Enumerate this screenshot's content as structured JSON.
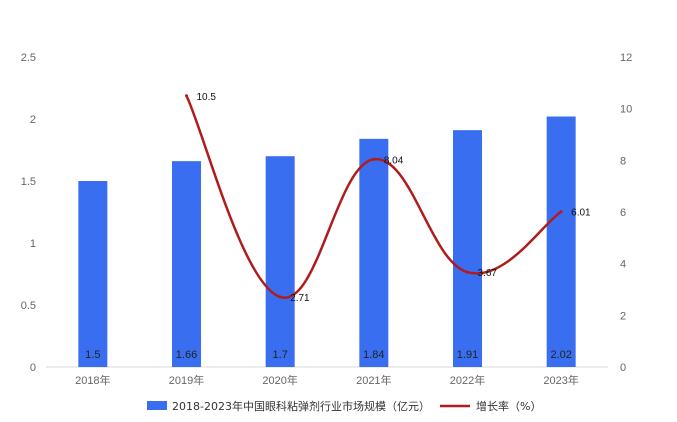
{
  "chart_data": {
    "type": "bar",
    "categories": [
      "2018年",
      "2019年",
      "2020年",
      "2021年",
      "2022年",
      "2023年"
    ],
    "series": [
      {
        "name": "2018-2023年中国眼科粘弹剂行业市场规模（亿元）",
        "type": "bar",
        "axis": "left",
        "color": "#3a6ef0",
        "values": [
          1.5,
          1.66,
          1.7,
          1.84,
          1.91,
          2.02
        ],
        "labels": [
          "1.5",
          "1.66",
          "1.7",
          "1.84",
          "1.91",
          "2.02"
        ]
      },
      {
        "name": "增长率（%）",
        "type": "line",
        "axis": "right",
        "color": "#b01c1c",
        "values": [
          null,
          10.5,
          2.71,
          8.04,
          3.67,
          6.01
        ],
        "labels": [
          "",
          "10.5",
          "2.71",
          "8.04",
          "3.67",
          "6.01"
        ]
      }
    ],
    "y_left": {
      "range": [
        0,
        2.5
      ],
      "ticks": [
        "0",
        "0.5",
        "1",
        "1.5",
        "2",
        "2.5"
      ]
    },
    "y_right": {
      "range": [
        0,
        12
      ],
      "ticks": [
        "0",
        "2",
        "4",
        "6",
        "8",
        "10",
        "12"
      ]
    },
    "grid": false,
    "legend": "bottom",
    "title": "",
    "xlabel": "",
    "ylabel": ""
  }
}
